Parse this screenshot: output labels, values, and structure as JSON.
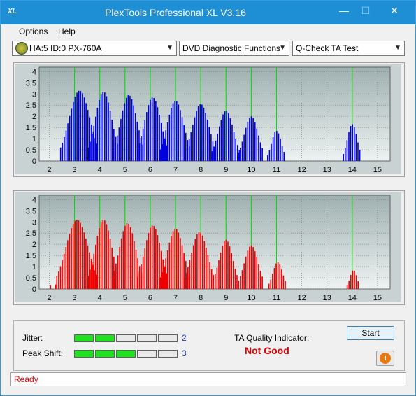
{
  "window": {
    "title": "PlexTools Professional XL V3.16",
    "icon_text": "XL"
  },
  "menu": {
    "options": "Options",
    "help": "Help"
  },
  "toolbar": {
    "drive": "HA:5 ID:0  PX-760A",
    "function": "DVD Diagnostic Functions",
    "test": "Q-Check TA Test"
  },
  "chart_data": [
    {
      "type": "bar",
      "name": "top",
      "color": "#0000dd",
      "x_ticks": [
        2,
        3,
        4,
        5,
        6,
        7,
        8,
        9,
        10,
        11,
        12,
        13,
        14,
        15
      ],
      "y_ticks": [
        0,
        0.5,
        1,
        1.5,
        2,
        2.5,
        3,
        3.5,
        4
      ],
      "ylim": [
        0,
        4.2
      ],
      "xlim": [
        1.6,
        15.5
      ],
      "peaks": [
        {
          "center": 3.2,
          "height": 3.15,
          "width": 0.75
        },
        {
          "center": 4.15,
          "height": 3.1,
          "width": 0.6
        },
        {
          "center": 5.15,
          "height": 2.95,
          "width": 0.6
        },
        {
          "center": 6.1,
          "height": 2.85,
          "width": 0.6
        },
        {
          "center": 7.0,
          "height": 2.7,
          "width": 0.6
        },
        {
          "center": 8.0,
          "height": 2.55,
          "width": 0.6
        },
        {
          "center": 9.0,
          "height": 2.25,
          "width": 0.55
        },
        {
          "center": 10.0,
          "height": 2.0,
          "width": 0.5
        },
        {
          "center": 11.0,
          "height": 1.35,
          "width": 0.35
        },
        {
          "center": 14.0,
          "height": 1.65,
          "width": 0.35
        }
      ]
    },
    {
      "type": "bar",
      "name": "bottom",
      "color": "#ee0000",
      "x_ticks": [
        2,
        3,
        4,
        5,
        6,
        7,
        8,
        9,
        10,
        11,
        12,
        13,
        14,
        15
      ],
      "y_ticks": [
        0,
        0.5,
        1,
        1.5,
        2,
        2.5,
        3,
        3.5,
        4
      ],
      "ylim": [
        0,
        4.2
      ],
      "xlim": [
        1.6,
        15.5
      ],
      "peaks": [
        {
          "center": 3.1,
          "height": 3.1,
          "width": 0.8
        },
        {
          "center": 4.15,
          "height": 3.1,
          "width": 0.6
        },
        {
          "center": 5.1,
          "height": 2.95,
          "width": 0.6
        },
        {
          "center": 6.1,
          "height": 2.85,
          "width": 0.6
        },
        {
          "center": 7.0,
          "height": 2.7,
          "width": 0.6
        },
        {
          "center": 7.95,
          "height": 2.55,
          "width": 0.6
        },
        {
          "center": 9.0,
          "height": 2.2,
          "width": 0.5
        },
        {
          "center": 10.0,
          "height": 1.95,
          "width": 0.5
        },
        {
          "center": 11.05,
          "height": 1.2,
          "width": 0.35
        },
        {
          "center": 14.05,
          "height": 0.85,
          "width": 0.25
        }
      ],
      "extra_bars": [
        {
          "x": 2.05,
          "h": 0.15
        },
        {
          "x": 2.25,
          "h": 0.2
        }
      ]
    }
  ],
  "green_lines": [
    3,
    4,
    5,
    6,
    7,
    8,
    9,
    10,
    11,
    14
  ],
  "colors": {
    "grid_green": "#00dd00",
    "plot_bg_top": "#9fb0b0",
    "plot_bg_bottom": "#eef2f2"
  },
  "metrics": {
    "jitter_label": "Jitter:",
    "jitter_value": "2",
    "jitter_level": 2,
    "peak_label": "Peak Shift:",
    "peak_value": "3",
    "peak_level": 3,
    "segments": 5
  },
  "ta": {
    "label": "TA Quality Indicator:",
    "result": "Not Good"
  },
  "buttons": {
    "start": "Start",
    "info_icon": "info-icon"
  },
  "status": {
    "text": "Ready"
  }
}
